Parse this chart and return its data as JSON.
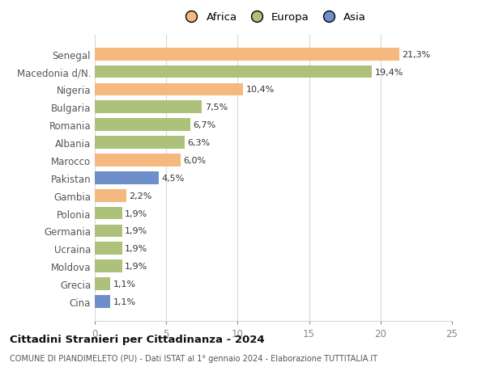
{
  "categories": [
    "Cina",
    "Grecia",
    "Moldova",
    "Ucraina",
    "Germania",
    "Polonia",
    "Gambia",
    "Pakistan",
    "Marocco",
    "Albania",
    "Romania",
    "Bulgaria",
    "Nigeria",
    "Macedonia d/N.",
    "Senegal"
  ],
  "values": [
    1.1,
    1.1,
    1.9,
    1.9,
    1.9,
    1.9,
    2.2,
    4.5,
    6.0,
    6.3,
    6.7,
    7.5,
    10.4,
    19.4,
    21.3
  ],
  "colors": [
    "#6e8fc9",
    "#adc17a",
    "#adc17a",
    "#adc17a",
    "#adc17a",
    "#adc17a",
    "#f5b97f",
    "#6e8fc9",
    "#f5b97f",
    "#adc17a",
    "#adc17a",
    "#adc17a",
    "#f5b97f",
    "#adc17a",
    "#f5b97f"
  ],
  "labels": [
    "1,1%",
    "1,1%",
    "1,9%",
    "1,9%",
    "1,9%",
    "1,9%",
    "2,2%",
    "4,5%",
    "6,0%",
    "6,3%",
    "6,7%",
    "7,5%",
    "10,4%",
    "19,4%",
    "21,3%"
  ],
  "legend": [
    {
      "label": "Africa",
      "color": "#f5b97f"
    },
    {
      "label": "Europa",
      "color": "#adc17a"
    },
    {
      "label": "Asia",
      "color": "#6e8fc9"
    }
  ],
  "title": "Cittadini Stranieri per Cittadinanza - 2024",
  "subtitle": "COMUNE DI PIANDIMELETO (PU) - Dati ISTAT al 1° gennaio 2024 - Elaborazione TUTTITALIA.IT",
  "xlim": [
    0,
    25
  ],
  "xticks": [
    0,
    5,
    10,
    15,
    20,
    25
  ],
  "bg_color": "#ffffff",
  "grid_color": "#d8d8d8",
  "bar_height": 0.72,
  "label_fontsize": 8.0,
  "ytick_fontsize": 8.5,
  "xtick_fontsize": 8.5
}
